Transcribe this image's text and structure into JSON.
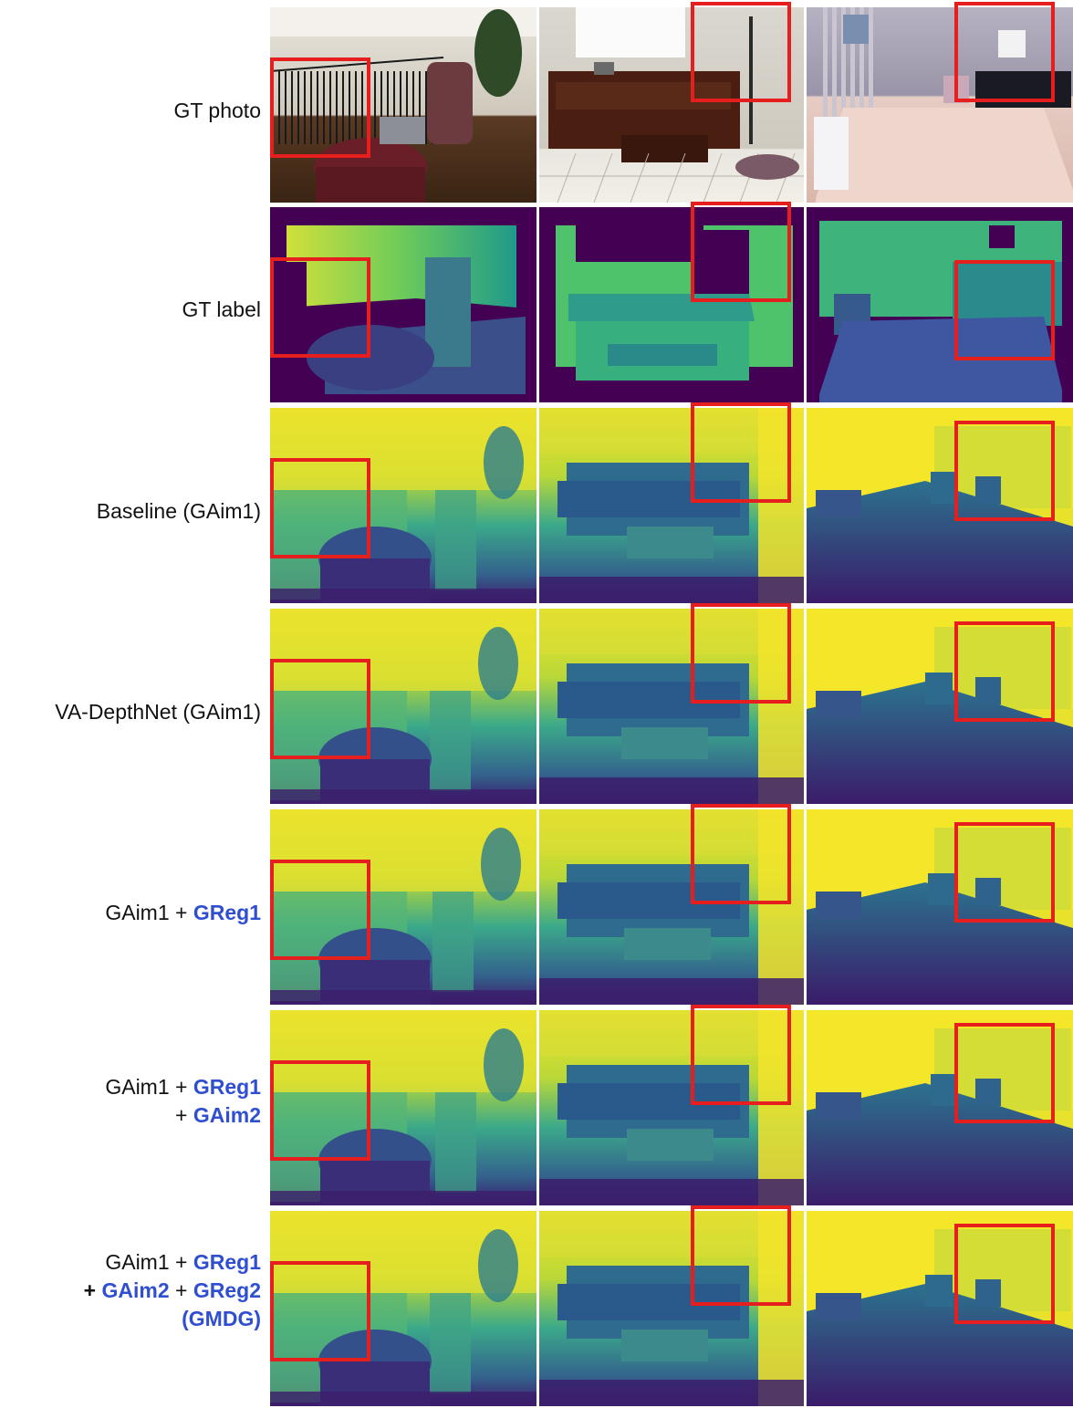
{
  "figure": {
    "rows": [
      {
        "id": "gt-photo",
        "label_parts": [
          {
            "text": "GT photo",
            "style": "normal"
          }
        ]
      },
      {
        "id": "gt-label",
        "label_parts": [
          {
            "text": "GT label",
            "style": "normal"
          }
        ]
      },
      {
        "id": "baseline",
        "label_parts": [
          {
            "text": "Baseline (GAim1)",
            "style": "normal"
          }
        ]
      },
      {
        "id": "va-depthnet",
        "label_parts": [
          {
            "text": "VA-DepthNet (GAim1)",
            "style": "normal"
          }
        ]
      },
      {
        "id": "gaim1-greg1",
        "label_parts": [
          {
            "text": "GAim1 + ",
            "style": "normal"
          },
          {
            "text": "GReg1",
            "style": "blue"
          }
        ]
      },
      {
        "id": "gaim1-greg1-gaim2",
        "label_parts": [
          {
            "text": "GAim1 + ",
            "style": "normal"
          },
          {
            "text": "GReg1",
            "style": "blue"
          },
          {
            "text": "\n+ ",
            "style": "normal"
          },
          {
            "text": "GAim2",
            "style": "blue"
          }
        ]
      },
      {
        "id": "gmdg",
        "label_parts": [
          {
            "text": "GAim1 + ",
            "style": "normal"
          },
          {
            "text": "GReg1",
            "style": "blue"
          },
          {
            "text": "\n",
            "style": "normal"
          },
          {
            "text": "+ ",
            "style": "bold"
          },
          {
            "text": "GAim2",
            "style": "blue"
          },
          {
            "text": " + ",
            "style": "normal"
          },
          {
            "text": "GReg2",
            "style": "blue"
          },
          {
            "text": "\n",
            "style": "normal"
          },
          {
            "text": "(GMDG)",
            "style": "blue"
          }
        ]
      }
    ],
    "colors": {
      "highlight": "#e61e1e",
      "method_name": "#2f4fd0",
      "viridis_low": "#440154",
      "viridis_mid": "#21918c",
      "viridis_high": "#fde725"
    }
  }
}
